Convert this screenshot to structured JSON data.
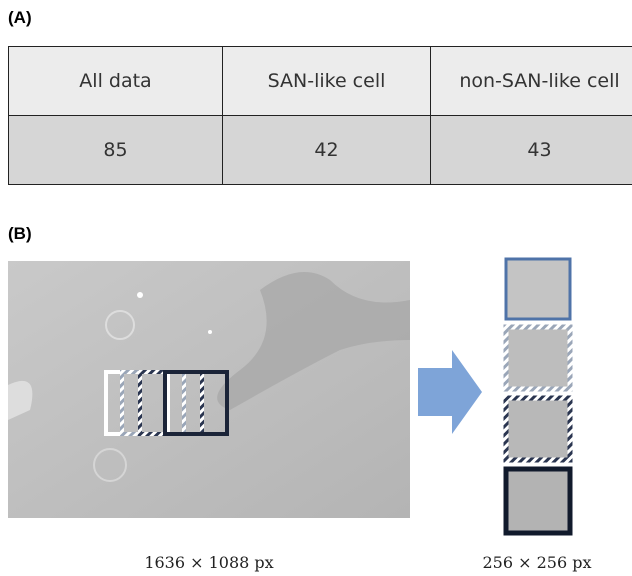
{
  "panel_a": {
    "label": "(A)",
    "table": {
      "header": [
        "All data",
        "SAN-like cell",
        "non-SAN-like cell"
      ],
      "rows": [
        [
          "85",
          "42",
          "43"
        ]
      ]
    }
  },
  "panel_b": {
    "label": "(B)",
    "captions": [
      "1636 × 1088 px",
      "256 × 256 px"
    ]
  }
}
